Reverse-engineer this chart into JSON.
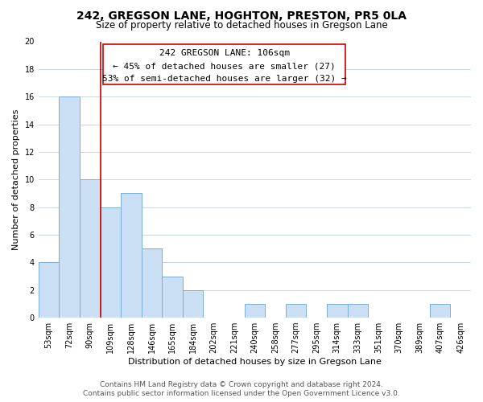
{
  "title": "242, GREGSON LANE, HOGHTON, PRESTON, PR5 0LA",
  "subtitle": "Size of property relative to detached houses in Gregson Lane",
  "xlabel": "Distribution of detached houses by size in Gregson Lane",
  "ylabel": "Number of detached properties",
  "bin_labels": [
    "53sqm",
    "72sqm",
    "90sqm",
    "109sqm",
    "128sqm",
    "146sqm",
    "165sqm",
    "184sqm",
    "202sqm",
    "221sqm",
    "240sqm",
    "258sqm",
    "277sqm",
    "295sqm",
    "314sqm",
    "333sqm",
    "351sqm",
    "370sqm",
    "389sqm",
    "407sqm",
    "426sqm"
  ],
  "bar_values": [
    4,
    16,
    10,
    8,
    9,
    5,
    3,
    2,
    0,
    0,
    1,
    0,
    1,
    0,
    1,
    1,
    0,
    0,
    0,
    1,
    0
  ],
  "bar_color": "#cce0f5",
  "bar_edge_color": "#7bafd4",
  "vline_x": 3.0,
  "vline_color": "#cc0000",
  "annotation_line1": "242 GREGSON LANE: 106sqm",
  "annotation_line2": "← 45% of detached houses are smaller (27)",
  "annotation_line3": "53% of semi-detached houses are larger (32) →",
  "ylim": [
    0,
    20
  ],
  "yticks": [
    0,
    2,
    4,
    6,
    8,
    10,
    12,
    14,
    16,
    18,
    20
  ],
  "footer_text": "Contains HM Land Registry data © Crown copyright and database right 2024.\nContains public sector information licensed under the Open Government Licence v3.0.",
  "grid_color": "#c8d8ea",
  "background_color": "#ffffff",
  "title_fontsize": 10,
  "subtitle_fontsize": 8.5,
  "axis_label_fontsize": 8,
  "tick_fontsize": 7,
  "annotation_fontsize": 8,
  "footer_fontsize": 6.5
}
